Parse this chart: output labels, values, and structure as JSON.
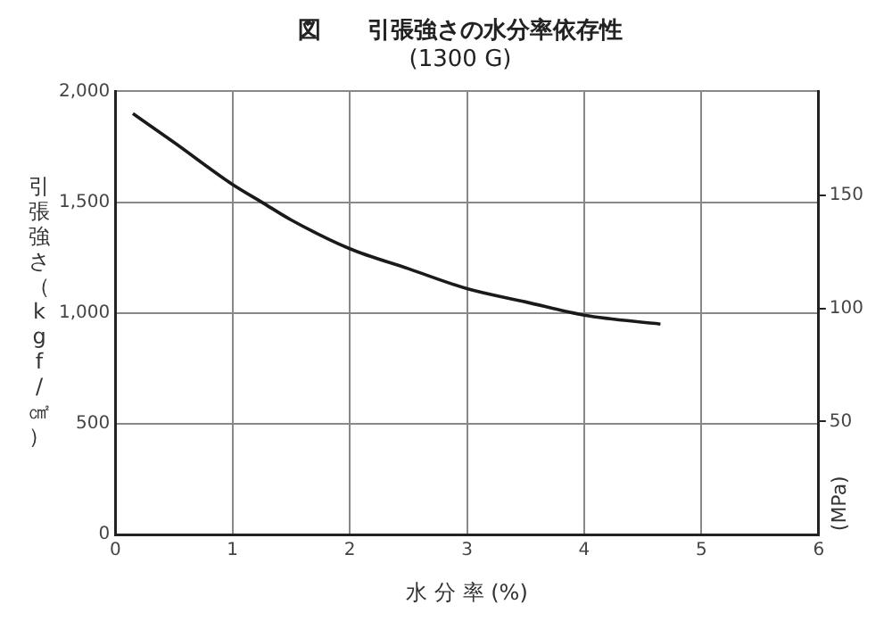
{
  "chart_data": {
    "type": "line",
    "title": "図　　引張強さの水分率依存性",
    "subtitle": "(1300 G)",
    "xlabel": "水 分 率 (%)",
    "ylabel": "引張強さ（kgf/㎠）",
    "y2label": "(MPa)",
    "x": [
      0.15,
      0.5,
      1,
      1.25,
      1.5,
      2,
      2.5,
      3,
      3.5,
      4,
      4.65
    ],
    "series": [
      {
        "color": "#1a1a1a",
        "values": [
          1900,
          1770,
          1580,
          1500,
          1420,
          1290,
          1200,
          1110,
          1050,
          990,
          950
        ]
      }
    ],
    "xlim": [
      0,
      6
    ],
    "xticks": [
      0,
      1,
      2,
      3,
      4,
      5,
      6
    ],
    "ylim": [
      0,
      2000
    ],
    "yticks": [
      0,
      {
        "value": 500,
        "label": "500"
      },
      {
        "value": 1000,
        "label": "1,000"
      },
      {
        "value": 1500,
        "label": "1,500"
      },
      {
        "value": 2000,
        "label": "2,000"
      }
    ],
    "y2lim": [
      0,
      196
    ],
    "y2ticks": [
      50,
      100,
      150
    ],
    "grid": true,
    "legend": false,
    "marker": "none",
    "line_style": "solid"
  }
}
